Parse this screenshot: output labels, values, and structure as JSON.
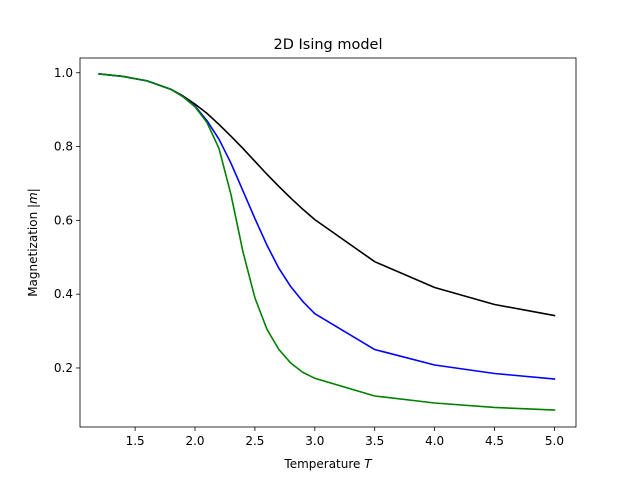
{
  "chart_data": {
    "type": "line",
    "title": "2D Ising model",
    "xlabel_text": "Temperature ",
    "xlabel_symbol": "T",
    "ylabel_text": "Magnetization |",
    "ylabel_symbol": "m",
    "ylabel_suffix": "|",
    "xlim": [
      1.04,
      5.18
    ],
    "ylim": [
      0.04,
      1.04
    ],
    "xticks": [
      1.5,
      2.0,
      2.5,
      3.0,
      3.5,
      4.0,
      4.5,
      5.0
    ],
    "xtick_labels": [
      "1.5",
      "2.0",
      "2.5",
      "3.0",
      "3.5",
      "4.0",
      "4.5",
      "5.0"
    ],
    "yticks": [
      0.2,
      0.4,
      0.6,
      0.8,
      1.0
    ],
    "ytick_labels": [
      "0.2",
      "0.4",
      "0.6",
      "0.8",
      "1.0"
    ],
    "grid": false,
    "legend": "none",
    "series": [
      {
        "color": "#000000",
        "x": [
          1.2,
          1.4,
          1.6,
          1.8,
          1.9,
          2.0,
          2.1,
          2.2,
          2.3,
          2.4,
          2.5,
          2.6,
          2.7,
          2.8,
          2.9,
          3.0,
          3.5,
          4.0,
          4.5,
          5.0
        ],
        "y": [
          0.997,
          0.99,
          0.978,
          0.955,
          0.937,
          0.915,
          0.89,
          0.86,
          0.828,
          0.795,
          0.76,
          0.725,
          0.692,
          0.66,
          0.63,
          0.602,
          0.488,
          0.418,
          0.372,
          0.342
        ]
      },
      {
        "color": "#0000ff",
        "x": [
          1.2,
          1.4,
          1.6,
          1.8,
          1.9,
          2.0,
          2.1,
          2.2,
          2.3,
          2.4,
          2.5,
          2.6,
          2.7,
          2.8,
          2.9,
          3.0,
          3.5,
          4.0,
          4.5,
          5.0
        ],
        "y": [
          0.997,
          0.99,
          0.978,
          0.955,
          0.935,
          0.91,
          0.87,
          0.82,
          0.755,
          0.68,
          0.605,
          0.533,
          0.47,
          0.42,
          0.38,
          0.347,
          0.25,
          0.208,
          0.185,
          0.17
        ]
      },
      {
        "color": "#008000",
        "x": [
          1.2,
          1.4,
          1.6,
          1.8,
          1.9,
          2.0,
          2.1,
          2.2,
          2.3,
          2.4,
          2.5,
          2.6,
          2.7,
          2.8,
          2.9,
          3.0,
          3.5,
          4.0,
          4.5,
          5.0
        ],
        "y": [
          0.997,
          0.99,
          0.978,
          0.955,
          0.935,
          0.908,
          0.865,
          0.795,
          0.67,
          0.515,
          0.39,
          0.305,
          0.25,
          0.213,
          0.188,
          0.172,
          0.124,
          0.105,
          0.093,
          0.086
        ]
      }
    ]
  }
}
